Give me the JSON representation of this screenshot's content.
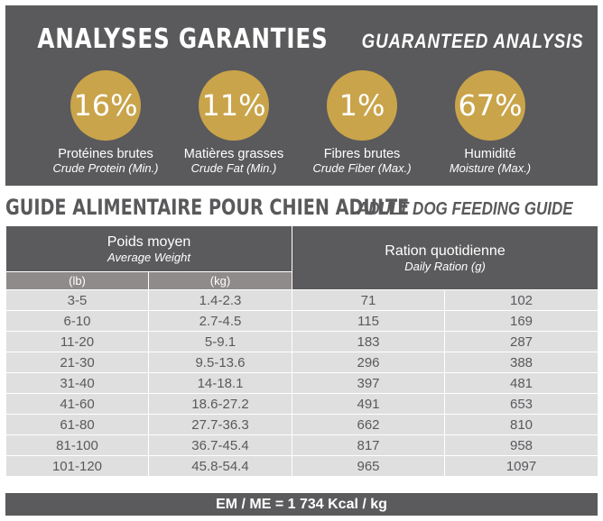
{
  "analysis": {
    "title_fr": "ANALYSES GARANTIES",
    "title_en": "GUARANTEED ANALYSIS",
    "items": [
      {
        "value": "16%",
        "label_fr": "Protéines brutes",
        "label_en": "Crude Protein (Min.)"
      },
      {
        "value": "11%",
        "label_fr": "Matières grasses",
        "label_en": "Crude Fat (Min.)"
      },
      {
        "value": "1%",
        "label_fr": "Fibres brutes",
        "label_en": "Crude Fiber (Max.)"
      },
      {
        "value": "67%",
        "label_fr": "Humidité",
        "label_en": "Moisture (Max.)"
      }
    ]
  },
  "guide": {
    "title_fr": "GUIDE ALIMENTAIRE POUR CHIEN ADULTE",
    "title_en": "ADULT DOG FEEDING GUIDE",
    "weight_fr": "Poids moyen",
    "weight_en": "Average Weight",
    "ration_fr": "Ration quotidienne",
    "ration_en": "Daily Ration (g)",
    "unit_lb": "(lb)",
    "unit_kg": "(kg)",
    "rows": [
      [
        "3-5",
        "1.4-2.3",
        "71",
        "102"
      ],
      [
        "6-10",
        "2.7-4.5",
        "115",
        "169"
      ],
      [
        "11-20",
        "5-9.1",
        "183",
        "287"
      ],
      [
        "21-30",
        "9.5-13.6",
        "296",
        "388"
      ],
      [
        "31-40",
        "14-18.1",
        "397",
        "481"
      ],
      [
        "41-60",
        "18.6-27.2",
        "491",
        "653"
      ],
      [
        "61-80",
        "27.7-36.3",
        "662",
        "810"
      ],
      [
        "81-100",
        "36.7-45.4",
        "817",
        "958"
      ],
      [
        "101-120",
        "45.8-54.4",
        "965",
        "1097"
      ]
    ],
    "footer": "EM / ME = 1 734 Kcal / kg"
  },
  "colors": {
    "dark": "#5a5a5c",
    "gold": "#c9a44a"
  }
}
